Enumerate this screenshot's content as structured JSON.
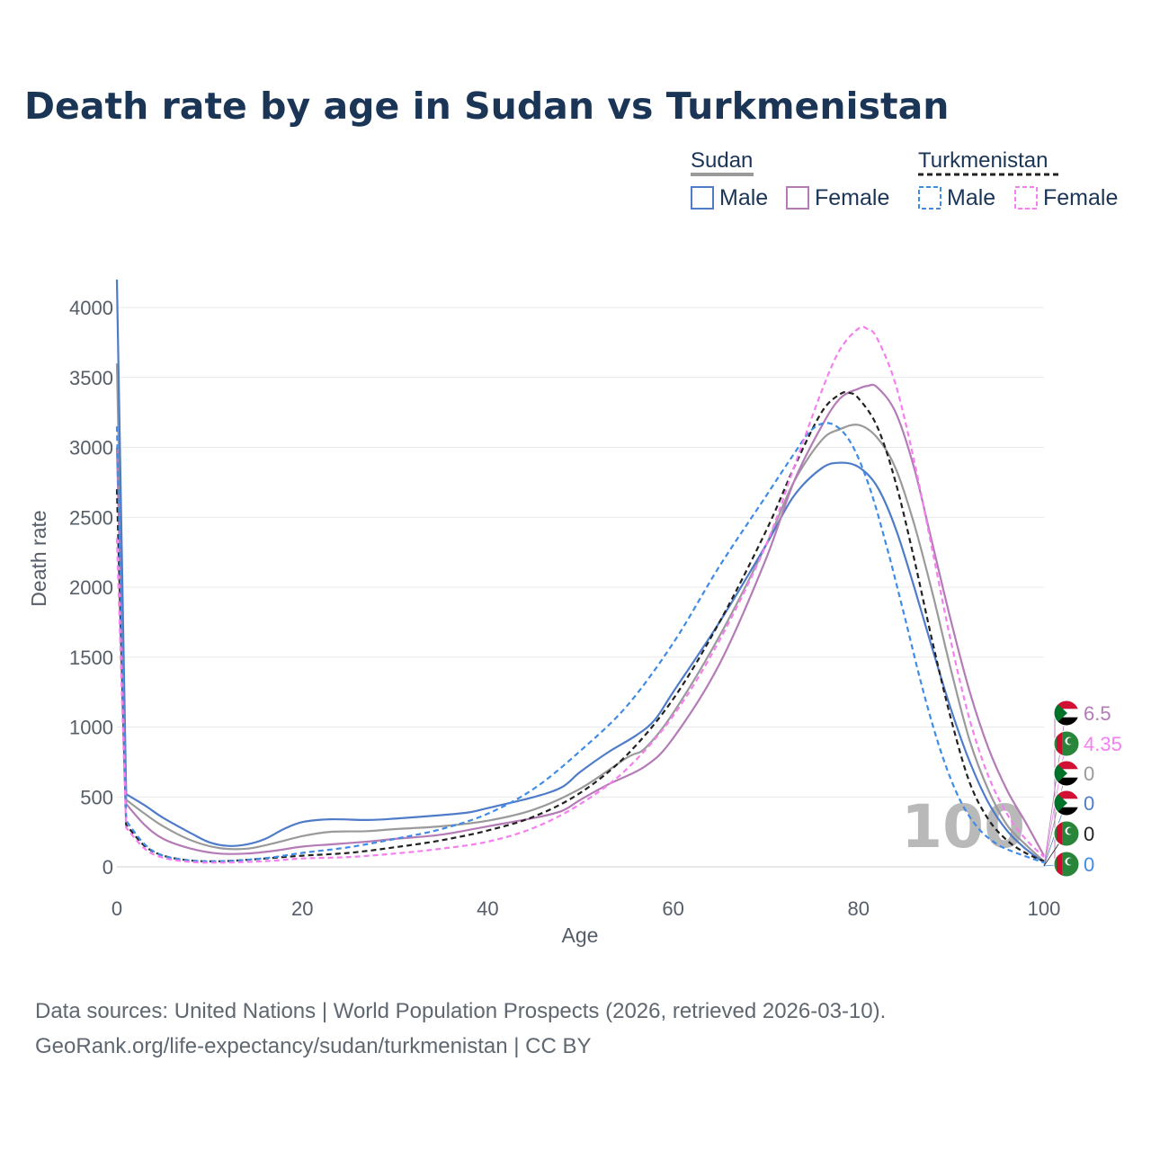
{
  "title": "Death rate by age in Sudan vs Turkmenistan",
  "legend": {
    "groups": [
      {
        "name": "Sudan",
        "line_color": "#9a9a9a",
        "dashed": false,
        "items": [
          {
            "label": "Male",
            "color": "#4f7cc8"
          },
          {
            "label": "Female",
            "color": "#b47bb7"
          }
        ]
      },
      {
        "name": "Turkmenistan",
        "line_color": "#222222",
        "dashed": true,
        "items": [
          {
            "label": "Male",
            "color": "#3f8be6"
          },
          {
            "label": "Female",
            "color": "#f67ff0"
          }
        ]
      }
    ]
  },
  "chart_data": {
    "type": "line",
    "xlabel": "Age",
    "ylabel": "Death rate",
    "xlim": [
      0,
      100
    ],
    "ylim": [
      0,
      4200
    ],
    "x_ticks": [
      0,
      20,
      40,
      60,
      80,
      100
    ],
    "y_ticks": [
      0,
      500,
      1000,
      1500,
      2000,
      2500,
      3000,
      3500,
      4000
    ],
    "current_age": "100",
    "series": [
      {
        "name": "Sudan Total",
        "color": "#9a9a9a",
        "dashed": false,
        "end_label": "0",
        "points": [
          [
            0,
            3600
          ],
          [
            1,
            480
          ],
          [
            3,
            380
          ],
          [
            5,
            290
          ],
          [
            8,
            190
          ],
          [
            11,
            135
          ],
          [
            14,
            130
          ],
          [
            17,
            170
          ],
          [
            20,
            220
          ],
          [
            23,
            250
          ],
          [
            27,
            255
          ],
          [
            30,
            270
          ],
          [
            35,
            290
          ],
          [
            40,
            330
          ],
          [
            45,
            410
          ],
          [
            50,
            560
          ],
          [
            55,
            780
          ],
          [
            57,
            850
          ],
          [
            60,
            1100
          ],
          [
            65,
            1650
          ],
          [
            70,
            2300
          ],
          [
            73,
            2750
          ],
          [
            76,
            3050
          ],
          [
            78,
            3130
          ],
          [
            80,
            3160
          ],
          [
            82,
            3070
          ],
          [
            84,
            2850
          ],
          [
            86,
            2450
          ],
          [
            88,
            1950
          ],
          [
            90,
            1400
          ],
          [
            92,
            900
          ],
          [
            94,
            550
          ],
          [
            96,
            300
          ],
          [
            98,
            160
          ],
          [
            100,
            40
          ]
        ]
      },
      {
        "name": "Sudan Male",
        "color": "#4f7cc8",
        "dashed": false,
        "end_label": "0",
        "points": [
          [
            0,
            4200
          ],
          [
            1,
            520
          ],
          [
            3,
            440
          ],
          [
            5,
            350
          ],
          [
            8,
            240
          ],
          [
            10,
            175
          ],
          [
            12,
            150
          ],
          [
            14,
            160
          ],
          [
            16,
            200
          ],
          [
            18,
            270
          ],
          [
            20,
            320
          ],
          [
            23,
            340
          ],
          [
            27,
            335
          ],
          [
            30,
            345
          ],
          [
            35,
            370
          ],
          [
            38,
            390
          ],
          [
            40,
            420
          ],
          [
            45,
            500
          ],
          [
            48,
            570
          ],
          [
            50,
            680
          ],
          [
            53,
            820
          ],
          [
            56,
            940
          ],
          [
            58,
            1050
          ],
          [
            60,
            1250
          ],
          [
            65,
            1750
          ],
          [
            70,
            2300
          ],
          [
            73,
            2650
          ],
          [
            76,
            2850
          ],
          [
            78,
            2890
          ],
          [
            80,
            2860
          ],
          [
            82,
            2720
          ],
          [
            84,
            2420
          ],
          [
            86,
            2000
          ],
          [
            88,
            1550
          ],
          [
            90,
            1120
          ],
          [
            92,
            750
          ],
          [
            94,
            460
          ],
          [
            96,
            260
          ],
          [
            98,
            130
          ],
          [
            100,
            30
          ]
        ]
      },
      {
        "name": "Sudan Female",
        "color": "#b47bb7",
        "dashed": false,
        "end_label": "6.5",
        "points": [
          [
            0,
            3000
          ],
          [
            1,
            450
          ],
          [
            3,
            300
          ],
          [
            5,
            200
          ],
          [
            8,
            130
          ],
          [
            11,
            95
          ],
          [
            14,
            95
          ],
          [
            17,
            115
          ],
          [
            20,
            145
          ],
          [
            23,
            160
          ],
          [
            27,
            180
          ],
          [
            30,
            200
          ],
          [
            35,
            230
          ],
          [
            40,
            290
          ],
          [
            45,
            350
          ],
          [
            48,
            400
          ],
          [
            50,
            480
          ],
          [
            53,
            590
          ],
          [
            57,
            720
          ],
          [
            60,
            920
          ],
          [
            65,
            1450
          ],
          [
            70,
            2200
          ],
          [
            73,
            2750
          ],
          [
            76,
            3150
          ],
          [
            78,
            3350
          ],
          [
            80,
            3420
          ],
          [
            81,
            3440
          ],
          [
            82,
            3430
          ],
          [
            84,
            3250
          ],
          [
            86,
            2850
          ],
          [
            88,
            2300
          ],
          [
            90,
            1750
          ],
          [
            92,
            1250
          ],
          [
            94,
            850
          ],
          [
            96,
            550
          ],
          [
            98,
            320
          ],
          [
            100,
            80
          ]
        ]
      },
      {
        "name": "Turkmenistan Total",
        "color": "#222222",
        "dashed": true,
        "end_label": "0",
        "points": [
          [
            0,
            2700
          ],
          [
            1,
            300
          ],
          [
            3,
            150
          ],
          [
            5,
            80
          ],
          [
            8,
            45
          ],
          [
            11,
            40
          ],
          [
            14,
            50
          ],
          [
            17,
            65
          ],
          [
            20,
            80
          ],
          [
            25,
            100
          ],
          [
            30,
            140
          ],
          [
            35,
            190
          ],
          [
            40,
            260
          ],
          [
            45,
            360
          ],
          [
            50,
            530
          ],
          [
            55,
            800
          ],
          [
            60,
            1200
          ],
          [
            65,
            1750
          ],
          [
            70,
            2400
          ],
          [
            73,
            2850
          ],
          [
            76,
            3250
          ],
          [
            78,
            3380
          ],
          [
            79,
            3390
          ],
          [
            80,
            3350
          ],
          [
            82,
            3150
          ],
          [
            84,
            2750
          ],
          [
            86,
            2200
          ],
          [
            88,
            1600
          ],
          [
            90,
            1050
          ],
          [
            92,
            600
          ],
          [
            94,
            340
          ],
          [
            96,
            190
          ],
          [
            98,
            100
          ],
          [
            100,
            40
          ]
        ]
      },
      {
        "name": "Turkmenistan Male",
        "color": "#3f8be6",
        "dashed": true,
        "end_label": "0",
        "points": [
          [
            0,
            3150
          ],
          [
            1,
            330
          ],
          [
            3,
            160
          ],
          [
            5,
            80
          ],
          [
            8,
            45
          ],
          [
            11,
            40
          ],
          [
            14,
            50
          ],
          [
            17,
            70
          ],
          [
            20,
            100
          ],
          [
            25,
            140
          ],
          [
            30,
            200
          ],
          [
            35,
            270
          ],
          [
            40,
            380
          ],
          [
            45,
            560
          ],
          [
            50,
            830
          ],
          [
            55,
            1150
          ],
          [
            60,
            1600
          ],
          [
            65,
            2150
          ],
          [
            70,
            2650
          ],
          [
            73,
            2950
          ],
          [
            75,
            3130
          ],
          [
            77,
            3170
          ],
          [
            79,
            3050
          ],
          [
            81,
            2750
          ],
          [
            83,
            2300
          ],
          [
            85,
            1780
          ],
          [
            87,
            1250
          ],
          [
            89,
            800
          ],
          [
            91,
            470
          ],
          [
            93,
            270
          ],
          [
            95,
            160
          ],
          [
            97,
            100
          ],
          [
            100,
            30
          ]
        ]
      },
      {
        "name": "Turkmenistan Female",
        "color": "#f67ff0",
        "dashed": true,
        "end_label": "4.35",
        "points": [
          [
            0,
            2350
          ],
          [
            1,
            280
          ],
          [
            3,
            130
          ],
          [
            5,
            65
          ],
          [
            8,
            35
          ],
          [
            11,
            30
          ],
          [
            14,
            35
          ],
          [
            17,
            45
          ],
          [
            20,
            60
          ],
          [
            25,
            70
          ],
          [
            30,
            95
          ],
          [
            35,
            130
          ],
          [
            40,
            180
          ],
          [
            45,
            280
          ],
          [
            50,
            450
          ],
          [
            55,
            700
          ],
          [
            60,
            1080
          ],
          [
            65,
            1620
          ],
          [
            70,
            2300
          ],
          [
            73,
            2850
          ],
          [
            76,
            3400
          ],
          [
            78,
            3700
          ],
          [
            80,
            3850
          ],
          [
            81,
            3845
          ],
          [
            82,
            3780
          ],
          [
            84,
            3450
          ],
          [
            86,
            2900
          ],
          [
            88,
            2250
          ],
          [
            90,
            1600
          ],
          [
            92,
            1050
          ],
          [
            94,
            650
          ],
          [
            96,
            380
          ],
          [
            98,
            200
          ],
          [
            100,
            70
          ]
        ]
      }
    ]
  },
  "footer": {
    "line1": "Data sources: United Nations | World Population Prospects (2026, retrieved 2026-03-10).",
    "line2": "GeoRank.org/life-expectancy/sudan/turkmenistan | CC BY"
  }
}
